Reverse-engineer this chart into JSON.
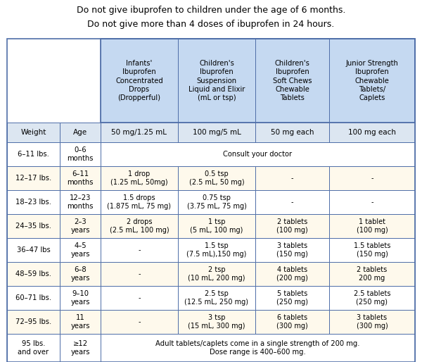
{
  "title_line1": "Do not give ibuprofen to children under the age of 6 months.",
  "title_line2": "Do not give more than 4 doses of ibuprofen in 24 hours.",
  "col_headers_top": [
    "Infants'\nIbuprofen\nConcentrated\nDrops\n(Dropperful)",
    "Children's\nIbuprofen\nSuspension\nLiquid and Elixir\n(mL or tsp)",
    "Children's\nIbuprofen\nSoft Chews\nChewable\nTablets",
    "Junior Strength\nIbuprofen\nChewable\nTablets/\nCaplets"
  ],
  "col_headers_sub": [
    "50 mg/1.25 mL",
    "100 mg/5 mL",
    "50 mg each",
    "100 mg each"
  ],
  "header_bg": "#c5d9f1",
  "subheader_bg": "#dce6f1",
  "row_bg_white": "#ffffff",
  "row_bg_cream": "#fef9ec",
  "border_color": "#4f6ea8",
  "text_color": "#000000",
  "fig_bg": "#ffffff",
  "rows_data": [
    [
      "6–11 lbs.",
      "0–6\nmonths",
      "SPAN:Consult your doctor",
      "",
      "",
      ""
    ],
    [
      "12–17 lbs.",
      "6–11\nmonths",
      "1 drop\n(1.25 mL, 50mg)",
      "0.5 tsp\n(2.5 mL, 50 mg)",
      "-",
      "-"
    ],
    [
      "18–23 lbs.",
      "12–23\nmonths",
      "1.5 drops\n(1.875 mL, 75 mg)",
      "0.75 tsp\n(3.75 mL, 75 mg)",
      "-",
      "-"
    ],
    [
      "24–35 lbs.",
      "2–3\nyears",
      "2 drops\n(2.5 mL, 100 mg)",
      "1 tsp\n(5 mL, 100 mg)",
      "2 tablets\n(100 mg)",
      "1 tablet\n(100 mg)"
    ],
    [
      "36–47 lbs",
      "4–5\nyears",
      "-",
      "1.5 tsp\n(7.5 mL),150 mg)",
      "3 tablets\n(150 mg)",
      "1.5 tablets\n(150 mg)"
    ],
    [
      "48–59 lbs.",
      "6–8\nyears",
      "-",
      "2 tsp\n(10 mL, 200 mg)",
      "4 tablets\n(200 mg)",
      "2 tablets\n200 mg"
    ],
    [
      "60–71 lbs.",
      "9–10\nyears",
      "-",
      "2.5 tsp\n(12.5 mL, 250 mg)",
      "5 tablets\n(250 mg)",
      "2.5 tablets\n(250 mg)"
    ],
    [
      "72–95 lbs.",
      "11\nyears",
      "-",
      "3 tsp\n(15 mL, 300 mg)",
      "6 tablets\n(300 mg)",
      "3 tablets\n(300 mg)"
    ],
    [
      "95 lbs.\nand over",
      "≥12\nyears",
      "SPAN:Adult tablets/caplets come in a single strength of 200 mg.\nDose range is 400–600 mg.",
      "",
      "",
      ""
    ]
  ],
  "row_bgs": [
    "white",
    "cream",
    "white",
    "cream",
    "white",
    "cream",
    "white",
    "cream",
    "white"
  ]
}
